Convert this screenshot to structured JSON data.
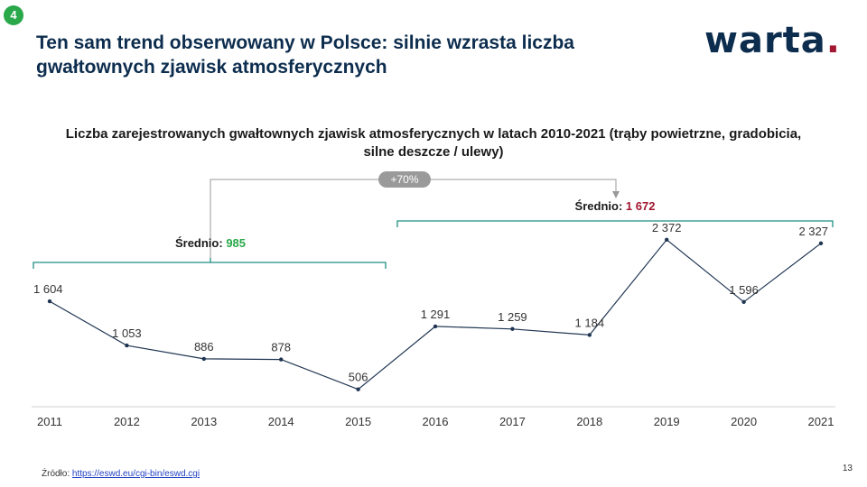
{
  "badge": "4",
  "title": "Ten sam trend obserwowany w Polsce: silnie wzrasta liczba gwałtownych zjawisk atmosferycznych",
  "logo": {
    "text": "warta",
    "dot": "."
  },
  "colors": {
    "navy": "#0d2d4e",
    "accent_red": "#a21732",
    "green": "#2aa84a",
    "bracket": "#1f8f82",
    "line": "#1f3552",
    "arrow_gray": "#999999"
  },
  "chart_data": {
    "type": "line",
    "title": "Liczba zarejestrowanych  gwałtownych zjawisk atmosferycznych w latach 2010-2021 (trąby powietrzne, gradobicia, silne deszcze / ulewy)",
    "categories": [
      "2011",
      "2012",
      "2013",
      "2014",
      "2015",
      "2016",
      "2017",
      "2018",
      "2019",
      "2020",
      "2021"
    ],
    "values": [
      1604,
      1053,
      886,
      878,
      506,
      1291,
      1259,
      1184,
      2372,
      1596,
      2327
    ],
    "labels": [
      "1 604",
      "1 053",
      "886",
      "878",
      "506",
      "1 291",
      "1 259",
      "1 184",
      "2 372",
      "1 596",
      "2 327"
    ],
    "ylim": [
      300,
      2550
    ],
    "annotations": {
      "avg1": {
        "label": "Średnio:",
        "value": "985"
      },
      "avg2": {
        "label": "Średnio:",
        "value": "1 672"
      },
      "change": "+70%"
    }
  },
  "source": {
    "label": "Źródło:",
    "link": "https://eswd.eu/cgi-bin/eswd.cgi"
  },
  "page_number": "13"
}
